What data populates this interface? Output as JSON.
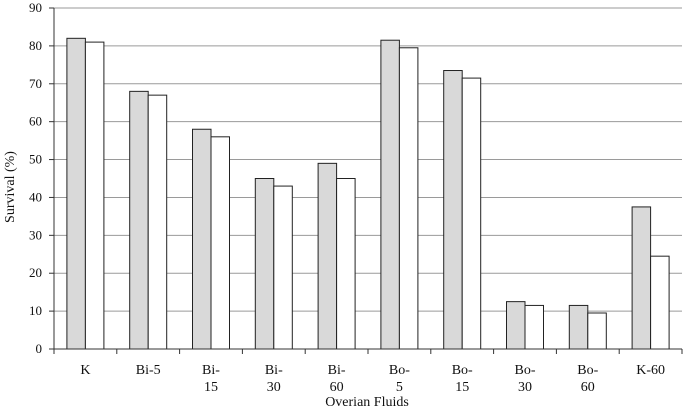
{
  "chart_data": {
    "type": "bar",
    "xlabel": "Overian Fluids",
    "ylabel": "Survival (%)",
    "ylim": [
      0,
      90
    ],
    "yticks": [
      0,
      10,
      20,
      30,
      40,
      50,
      60,
      70,
      80,
      90
    ],
    "grid": true,
    "categories": [
      [
        "K"
      ],
      [
        "Bi-5"
      ],
      [
        "Bi-",
        "15"
      ],
      [
        "Bi-",
        "30"
      ],
      [
        "Bi-",
        "60"
      ],
      [
        "Bo-",
        "5"
      ],
      [
        "Bo-",
        "15"
      ],
      [
        "Bo-",
        "30"
      ],
      [
        "Bo-",
        "60"
      ],
      [
        "K-60"
      ]
    ],
    "series": [
      {
        "values": [
          82,
          68,
          58,
          45,
          49,
          81.5,
          73.5,
          12.5,
          11.5,
          37.5
        ],
        "color": "#d9d9d9"
      },
      {
        "values": [
          81,
          67,
          56,
          43,
          45,
          79.5,
          71.5,
          11.5,
          9.5,
          24.5
        ],
        "color": "#ffffff"
      }
    ]
  }
}
